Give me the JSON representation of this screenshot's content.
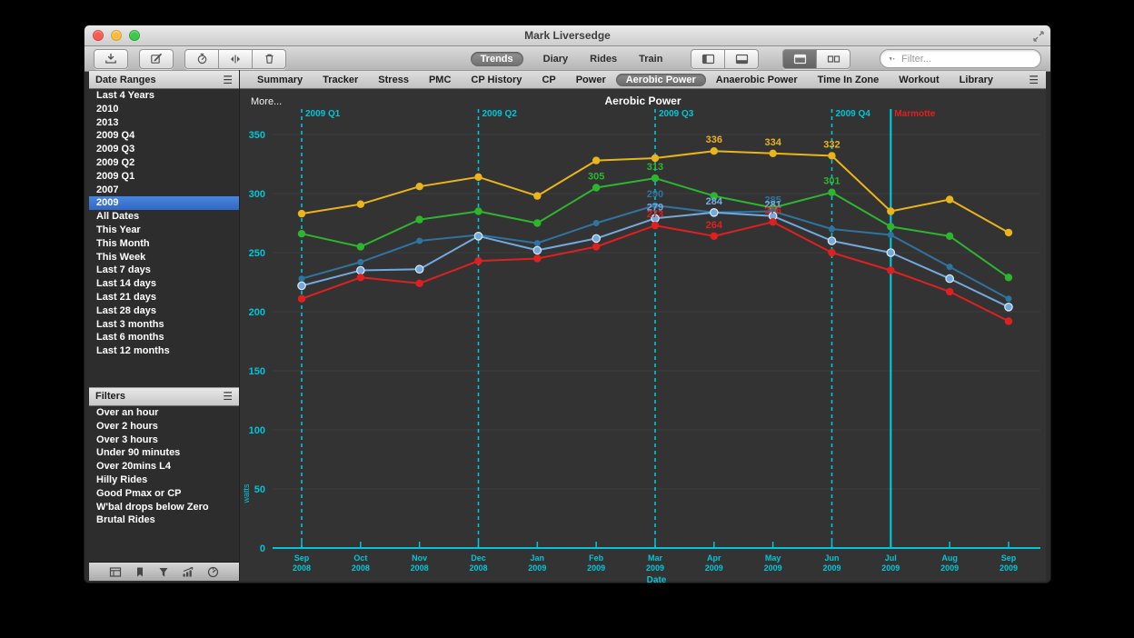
{
  "colors": {
    "accent_cyan": "#00c6d8",
    "selection_blue": "#3a76d0",
    "chart_bg": "#333333",
    "sidebar_bg": "#2d2d2d"
  },
  "window": {
    "title": "Mark Liversedge"
  },
  "toolbar": {
    "segments": [
      {
        "label": "Trends",
        "selected": true
      },
      {
        "label": "Diary",
        "selected": false
      },
      {
        "label": "Rides",
        "selected": false
      },
      {
        "label": "Train",
        "selected": false
      }
    ],
    "icon_buttons": [
      "download-icon",
      "compose-icon",
      "stopwatch-icon",
      "split-view-icon",
      "trash-icon",
      "sidebar-toggle-icon",
      "bottom-panel-icon",
      "tiled-view-icon",
      "tabbed-view-icon"
    ],
    "filter_placeholder": "Filter..."
  },
  "tab_bar": {
    "tabs": [
      "Summary",
      "Tracker",
      "Stress",
      "PMC",
      "CP History",
      "CP",
      "Power",
      "Aerobic Power",
      "Anaerobic Power",
      "Time In Zone",
      "Workout",
      "Library"
    ],
    "selected": "Aerobic Power"
  },
  "sidebar": {
    "date_ranges": {
      "title": "Date Ranges",
      "selected": "2009",
      "items": [
        "Last 4 Years",
        "2010",
        "2013",
        "2009 Q4",
        "2009 Q3",
        "2009 Q2",
        "2009 Q1",
        "2007",
        "2009",
        "All Dates",
        "This Year",
        "This Month",
        "This Week",
        "Last 7 days",
        "Last 14 days",
        "Last 21 days",
        "Last 28 days",
        "Last 3 months",
        "Last 6 months",
        "Last 12 months"
      ]
    },
    "filters": {
      "title": "Filters",
      "items": [
        "Over an hour",
        "Over 2 hours",
        "Over 3 hours",
        "Under 90 minutes",
        "Over 20mins L4",
        "Hilly Rides",
        "Good Pmax or CP",
        "W'bal drops below Zero",
        "Brutal Rides"
      ]
    },
    "bottom_icons": [
      "summary-table-icon",
      "bookmark-icon",
      "filter-funnel-icon",
      "trends-chart-icon",
      "gauge-icon"
    ]
  },
  "chart_header": {
    "more_label": "More...",
    "title": "Aerobic Power"
  },
  "chart_data": {
    "type": "line",
    "title": "Aerobic Power",
    "xlabel": "Date",
    "ylabel": "watts",
    "ylim": [
      0,
      350
    ],
    "yticks": [
      0,
      50,
      100,
      150,
      200,
      250,
      300,
      350
    ],
    "grid": true,
    "legend": "none",
    "x": [
      "Sep 2008",
      "Oct 2008",
      "Nov 2008",
      "Dec 2008",
      "Jan 2009",
      "Feb 2009",
      "Mar 2009",
      "Apr 2009",
      "May 2009",
      "Jun 2009",
      "Jul 2009",
      "Aug 2009",
      "Sep 2009"
    ],
    "series": [
      {
        "name": "peak-power-yellow",
        "color": "#e9b41c",
        "values": [
          283,
          291,
          306,
          314,
          298,
          328,
          330,
          336,
          334,
          332,
          285,
          295,
          267
        ],
        "point_labels": {
          "7": 336,
          "8": 334,
          "9": 332
        }
      },
      {
        "name": "peak-power-green",
        "color": "#2eb52e",
        "values": [
          266,
          255,
          278,
          285,
          275,
          305,
          313,
          298,
          288,
          301,
          272,
          264,
          229
        ],
        "point_labels": {
          "5": 305,
          "6": 313,
          "9": 301
        }
      },
      {
        "name": "peak-power-dark-blue",
        "color": "#2f739f",
        "values": [
          228,
          242,
          260,
          265,
          258,
          275,
          290,
          284,
          285,
          270,
          265,
          238,
          211
        ],
        "point_labels": {
          "6": 290,
          "7": 284,
          "8": 285
        }
      },
      {
        "name": "peak-power-light-blue",
        "color": "#74a9dc",
        "values": [
          222,
          235,
          236,
          264,
          252,
          262,
          279,
          284,
          281,
          260,
          250,
          228,
          204
        ],
        "point_labels": {
          "6": 279,
          "7": 284,
          "8": 281
        }
      },
      {
        "name": "peak-power-red",
        "color": "#e02020",
        "values": [
          211,
          229,
          224,
          243,
          245,
          255,
          273,
          264,
          276,
          250,
          235,
          217,
          192
        ],
        "point_labels": {
          "6": 273,
          "7": 264,
          "8": 276
        }
      }
    ],
    "events": [
      {
        "label": "2009 Q1",
        "x_index": 0,
        "style": "dashed"
      },
      {
        "label": "2009 Q2",
        "x_index": 3,
        "style": "dashed"
      },
      {
        "label": "2009 Q3",
        "x_index": 6,
        "style": "dashed"
      },
      {
        "label": "2009 Q4",
        "x_index": 9,
        "style": "dashed"
      },
      {
        "label": "Marmotte",
        "x_index": 10,
        "style": "solid",
        "label_color": "#e02020"
      }
    ]
  }
}
